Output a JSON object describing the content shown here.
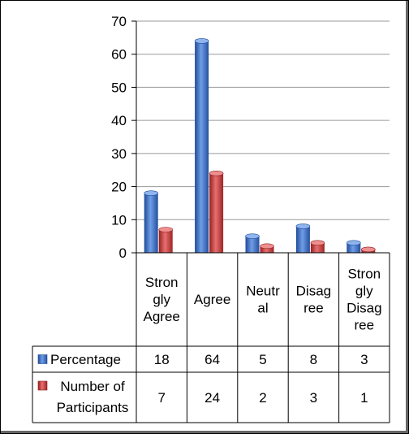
{
  "chart_data": {
    "type": "bar",
    "categories": [
      [
        "Stron",
        "gly",
        "Agree"
      ],
      [
        "Agree"
      ],
      [
        "Neutr",
        "al"
      ],
      [
        "Disag",
        "ree"
      ],
      [
        "Stron",
        "gly",
        "Disag",
        "ree"
      ]
    ],
    "series": [
      {
        "name": "Percentage",
        "values": [
          18,
          64,
          5,
          8,
          3
        ],
        "color": "#3a6fc6"
      },
      {
        "name_lines": [
          "Number of",
          "Participants"
        ],
        "values": [
          7,
          24,
          2,
          3,
          1
        ],
        "color": "#c63a3a"
      }
    ],
    "ylim": [
      0,
      70
    ],
    "yticks": [
      0,
      10,
      20,
      30,
      40,
      50,
      60,
      70
    ],
    "grid": true,
    "legend": "data-table"
  }
}
